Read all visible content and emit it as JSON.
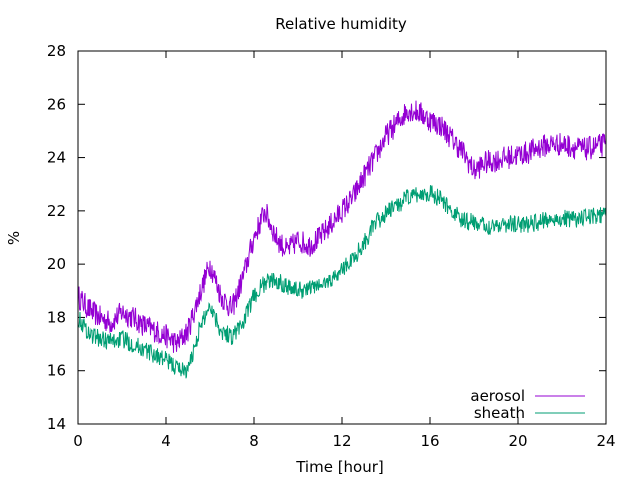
{
  "chart_data": {
    "type": "line",
    "title": "Relative humidity",
    "xlabel": "Time [hour]",
    "ylabel": "%",
    "xlim": [
      0,
      24
    ],
    "ylim": [
      14,
      28
    ],
    "xticks": [
      "0",
      "4",
      "8",
      "12",
      "16",
      "20",
      "24"
    ],
    "yticks": [
      "14",
      "16",
      "18",
      "20",
      "22",
      "24",
      "26",
      "28"
    ],
    "grid": false,
    "legend_position": "bottom-right",
    "series": [
      {
        "name": "aerosol",
        "color": "#9400d3",
        "x": [
          0,
          0.5,
          1,
          1.5,
          2,
          2.5,
          3,
          3.5,
          4,
          4.5,
          5,
          5.5,
          6,
          6.5,
          7,
          7.5,
          8,
          8.5,
          9,
          9.5,
          10,
          10.5,
          11,
          11.5,
          12,
          12.5,
          13,
          13.5,
          14,
          14.5,
          15,
          15.5,
          16,
          16.5,
          17,
          17.5,
          18,
          18.5,
          19,
          19.5,
          20,
          20.5,
          21,
          21.5,
          22,
          22.5,
          23,
          23.5,
          24
        ],
        "values": [
          18.8,
          18.3,
          18.0,
          17.8,
          18.2,
          18.0,
          17.7,
          17.5,
          17.3,
          17.0,
          17.5,
          18.8,
          20.0,
          18.8,
          18.3,
          19.5,
          21.0,
          22.0,
          21.0,
          20.5,
          20.9,
          20.7,
          21.0,
          21.5,
          22.0,
          22.5,
          23.3,
          24.0,
          24.8,
          25.3,
          25.8,
          25.7,
          25.4,
          25.2,
          24.7,
          24.2,
          23.5,
          23.8,
          23.9,
          24.0,
          24.1,
          24.2,
          24.4,
          24.5,
          24.5,
          24.4,
          24.3,
          24.4,
          24.5
        ]
      },
      {
        "name": "sheath",
        "color": "#009e73",
        "x": [
          0,
          0.5,
          1,
          1.5,
          2,
          2.5,
          3,
          3.5,
          4,
          4.5,
          5,
          5.5,
          6,
          6.5,
          7,
          7.5,
          8,
          8.5,
          9,
          9.5,
          10,
          10.5,
          11,
          11.5,
          12,
          12.5,
          13,
          13.5,
          14,
          14.5,
          15,
          15.5,
          16,
          16.5,
          17,
          17.5,
          18,
          18.5,
          19,
          19.5,
          20,
          20.5,
          21,
          21.5,
          22,
          22.5,
          23,
          23.5,
          24
        ],
        "values": [
          18.0,
          17.4,
          17.2,
          17.1,
          17.2,
          17.0,
          16.8,
          16.6,
          16.4,
          16.1,
          16.0,
          17.5,
          18.5,
          17.5,
          17.3,
          17.8,
          18.8,
          19.3,
          19.4,
          19.2,
          19.0,
          19.1,
          19.2,
          19.4,
          19.8,
          20.2,
          20.8,
          21.5,
          21.9,
          22.2,
          22.5,
          22.6,
          22.7,
          22.4,
          22.0,
          21.6,
          21.6,
          21.4,
          21.5,
          21.5,
          21.5,
          21.5,
          21.6,
          21.7,
          21.7,
          21.7,
          21.7,
          21.8,
          21.8
        ]
      }
    ]
  }
}
